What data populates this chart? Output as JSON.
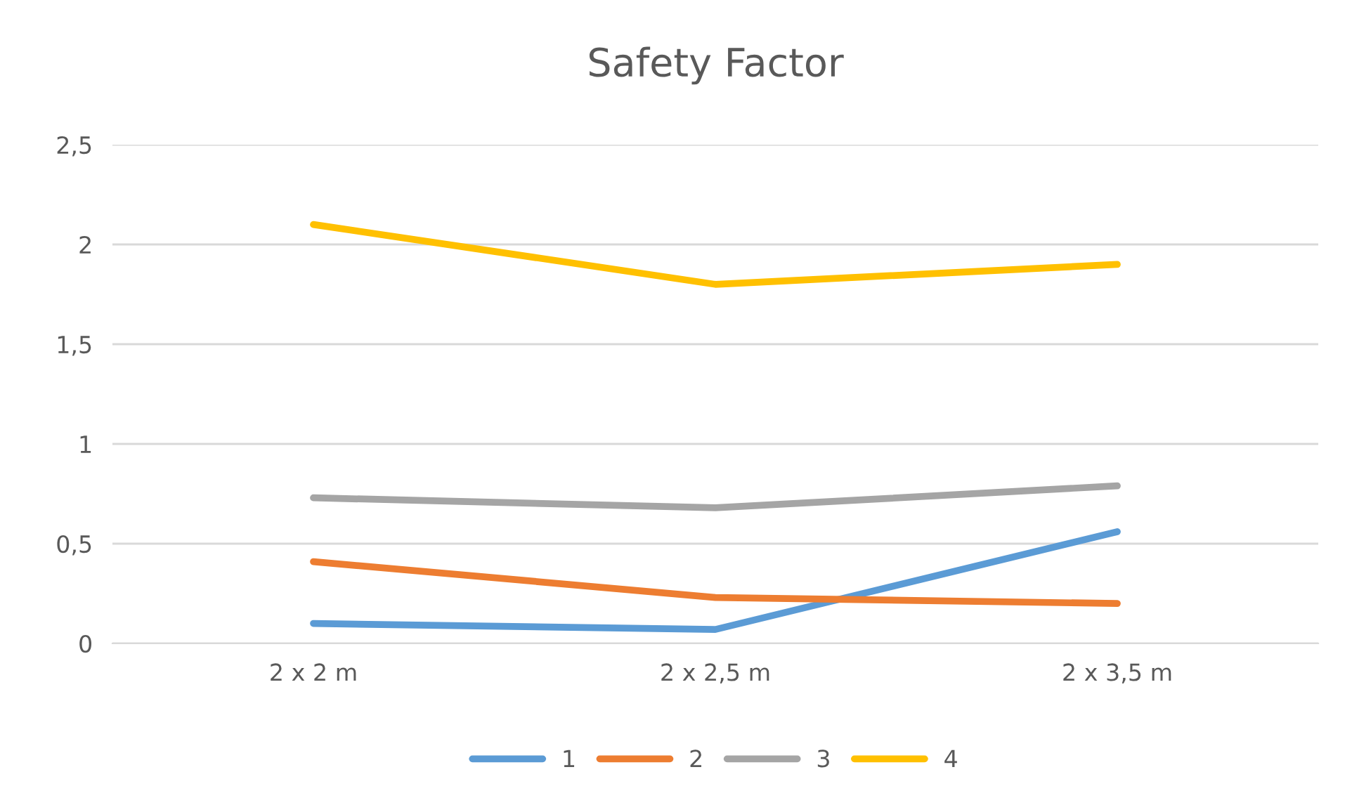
{
  "chart_data": {
    "type": "line",
    "title": "Safety Factor",
    "categories": [
      "2 x 2 m",
      "2 x 2,5 m",
      "2 x 3,5 m"
    ],
    "series": [
      {
        "name": "1",
        "color": "#5b9bd5",
        "values": [
          0.1,
          0.07,
          0.56
        ]
      },
      {
        "name": "2",
        "color": "#ed7d31",
        "values": [
          0.41,
          0.23,
          0.2
        ]
      },
      {
        "name": "3",
        "color": "#a5a5a5",
        "values": [
          0.73,
          0.68,
          0.79
        ]
      },
      {
        "name": "4",
        "color": "#ffc000",
        "values": [
          2.1,
          1.8,
          1.9
        ]
      }
    ],
    "ylim": [
      0,
      2.5
    ],
    "yticks": [
      0,
      {
        "value": 0.5,
        "label": "0,5"
      },
      1,
      {
        "value": 1.5,
        "label": "1,5"
      },
      2,
      {
        "value": 2.5,
        "label": "2,5"
      }
    ],
    "grid": "y",
    "legend": "bottom",
    "marker": "none",
    "line_style": "solid"
  }
}
